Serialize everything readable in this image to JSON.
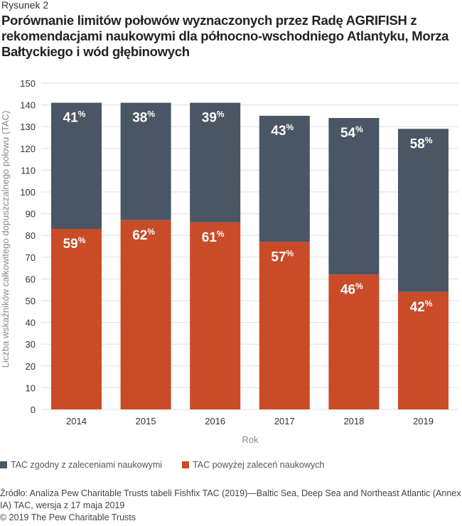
{
  "figure_label": "Rysunek 2",
  "title": "Porównanie limitów połowów wyznaczonych przez Radę AGRIFISH z rekomendacjami naukowymi dla północno-wschodniego Atlantyku, Morza Bałtyckiego i wód głębinowych",
  "colors": {
    "compliant": "#4a5664",
    "above_advice": "#c94b27",
    "grid": "#e3e3e3"
  },
  "chart_data": {
    "type": "bar",
    "stacked": true,
    "title": "Porównanie limitów połowów wyznaczonych przez Radę AGRIFISH z rekomendacjami naukowymi dla północno-wschodniego Atlantyku, Morza Bałtyckiego i wód głębinowych",
    "xlabel": "Rok",
    "ylabel": "Liczba wskaźników całkowitego dopuszczalnego połowu (TAC)",
    "categories": [
      "2014",
      "2015",
      "2016",
      "2017",
      "2018",
      "2019"
    ],
    "ylim": [
      0,
      150
    ],
    "yticks": [
      0,
      10,
      20,
      30,
      40,
      50,
      60,
      70,
      80,
      90,
      100,
      110,
      120,
      130,
      140,
      150
    ],
    "grid": true,
    "legend_position": "bottom-left",
    "series": [
      {
        "name": "TAC powyżej zaleceń naukowych",
        "color": "#c94b27",
        "values": [
          83,
          87,
          86,
          77,
          62,
          54
        ],
        "labels": [
          "59",
          "62",
          "61",
          "57",
          "46",
          "42"
        ]
      },
      {
        "name": "TAC zgodny z zaleceniami naukowymi",
        "color": "#4a5664",
        "values": [
          58,
          54,
          55,
          58,
          72,
          75
        ],
        "labels": [
          "41",
          "38",
          "39",
          "43",
          "54",
          "58"
        ]
      }
    ],
    "label_suffix": "%"
  },
  "legend": [
    {
      "label": "TAC zgodny z zaleceniami naukowymi",
      "color": "#4a5664"
    },
    {
      "label": "TAC powyżej zaleceń naukowych",
      "color": "#c94b27"
    }
  ],
  "source": "Źródło: Analiza Pew Charitable Trusts tabeli Fishfix TAC (2019)—Baltic Sea, Deep Sea and Northeast Atlantic (Annex IA) TAC, wersja z 17 maja 2019",
  "copyright": "© 2019 The Pew Charitable Trusts"
}
